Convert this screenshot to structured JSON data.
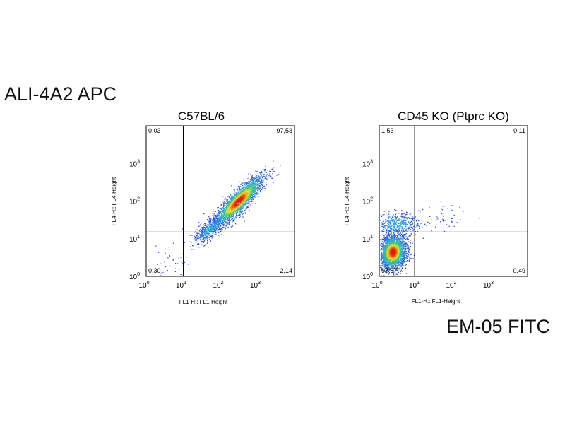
{
  "y_axis_marker": "ALI-4A2 APC",
  "x_axis_marker": "EM-05 FITC",
  "chart_data": [
    {
      "type": "scatter",
      "title": "C57BL/6",
      "xlabel": "FL1-H:: FL1-Height",
      "ylabel": "FL4-H:: FL4-Height",
      "scale": "log",
      "xlim": [
        1,
        10000
      ],
      "ylim": [
        1,
        10000
      ],
      "x_ticks": [
        {
          "base": "10",
          "exp": "0",
          "value": 1
        },
        {
          "base": "10",
          "exp": "1",
          "value": 10
        },
        {
          "base": "10",
          "exp": "2",
          "value": 100
        },
        {
          "base": "10",
          "exp": "3",
          "value": 1000
        }
      ],
      "y_ticks": [
        {
          "base": "10",
          "exp": "0",
          "value": 1
        },
        {
          "base": "10",
          "exp": "1",
          "value": 10
        },
        {
          "base": "10",
          "exp": "2",
          "value": 100
        },
        {
          "base": "10",
          "exp": "3",
          "value": 1000
        }
      ],
      "gate": {
        "x": 10,
        "y": 15
      },
      "quadrants": {
        "upper_left": "0,03",
        "upper_right": "97,53",
        "lower_left": "0,30",
        "lower_right": "2,14"
      },
      "populations": [
        {
          "cx": 300,
          "cy": 100,
          "spread_major": 0.45,
          "spread_minor": 0.12,
          "angle_deg": 45,
          "count": 2600
        },
        {
          "cx": 50,
          "cy": 18,
          "spread_major": 0.25,
          "spread_minor": 0.1,
          "angle_deg": 40,
          "count": 500
        },
        {
          "cx": 4,
          "cy": 2,
          "spread_major": 0.45,
          "spread_minor": 0.35,
          "angle_deg": 0,
          "count": 60
        }
      ]
    },
    {
      "type": "scatter",
      "title": "CD45 KO (Ptprc KO)",
      "xlabel": "FL1-H:: FL1-Height",
      "ylabel": "FL4-H:: FL4-Height",
      "scale": "log",
      "xlim": [
        1,
        10000
      ],
      "ylim": [
        1,
        10000
      ],
      "x_ticks": [
        {
          "base": "10",
          "exp": "0",
          "value": 1
        },
        {
          "base": "10",
          "exp": "1",
          "value": 10
        },
        {
          "base": "10",
          "exp": "2",
          "value": 100
        },
        {
          "base": "10",
          "exp": "3",
          "value": 1000
        }
      ],
      "y_ticks": [
        {
          "base": "10",
          "exp": "0",
          "value": 1
        },
        {
          "base": "10",
          "exp": "1",
          "value": 10
        },
        {
          "base": "10",
          "exp": "2",
          "value": 100
        },
        {
          "base": "10",
          "exp": "3",
          "value": 1000
        }
      ],
      "gate": {
        "x": 9,
        "y": 15
      },
      "quadrants": {
        "upper_left": "1,53",
        "upper_right": "0,11",
        "lower_left": "97,87",
        "lower_right": "0,49"
      },
      "populations": [
        {
          "cx": 2.3,
          "cy": 4.5,
          "spread_major": 0.22,
          "spread_minor": 0.17,
          "angle_deg": 80,
          "count": 2800
        },
        {
          "cx": 3,
          "cy": 25,
          "spread_major": 0.3,
          "spread_minor": 0.15,
          "angle_deg": 0,
          "count": 500
        },
        {
          "cx": 60,
          "cy": 40,
          "spread_major": 0.35,
          "spread_minor": 0.2,
          "angle_deg": 20,
          "count": 50
        }
      ]
    }
  ]
}
